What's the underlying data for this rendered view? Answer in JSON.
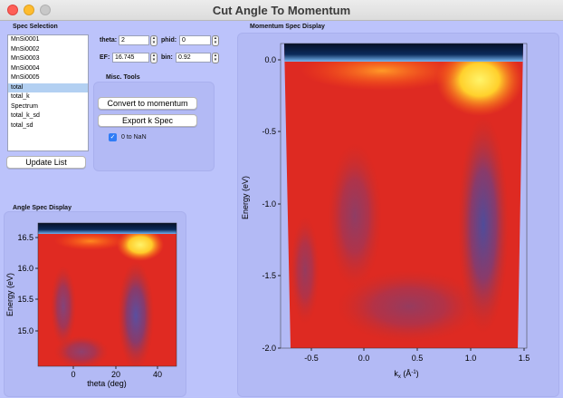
{
  "window": {
    "title": "Cut Angle To Momentum"
  },
  "spec_selection": {
    "label": "Spec Selection",
    "items": [
      "MnSi0001",
      "MnSi0002",
      "MnSi0003",
      "MnSi0004",
      "MnSi0005",
      "total",
      "total_k",
      "Spectrum",
      "total_k_sd",
      "total_sd"
    ],
    "selected": "total",
    "update_button": "Update List"
  },
  "params": {
    "theta_label": "theta:",
    "theta_value": "2",
    "phid_label": "phid:",
    "phid_value": "0",
    "ef_label": "EF:",
    "ef_value": "16.745",
    "bin_label": "bin:",
    "bin_value": "0.92"
  },
  "misc_tools": {
    "label": "Misc. Tools",
    "convert_button": "Convert to momentum",
    "export_button": "Export k Spec",
    "checkbox_label": "0 to NaN",
    "checkbox_checked": true
  },
  "angle_display": {
    "label": "Angle Spec Display",
    "xlabel": "theta (deg)",
    "ylabel": "Energy (eV)",
    "xticks": [
      "0",
      "20",
      "40"
    ],
    "yticks": [
      "16.5",
      "16.0",
      "15.5",
      "15.0"
    ]
  },
  "momentum_display": {
    "label": "Momentum Spec Display",
    "xlabel": "k",
    "xlabel_sub": "x",
    "xlabel_unit": " (Å",
    "xlabel_sup": "-1",
    "xlabel_end": ")",
    "ylabel": "Energy (eV)",
    "xticks": [
      "-0.5",
      "0.0",
      "0.5",
      "1.0",
      "1.5"
    ],
    "yticks": [
      "0.0",
      "-0.5",
      "-1.0",
      "-1.5",
      "-2.0"
    ]
  }
}
